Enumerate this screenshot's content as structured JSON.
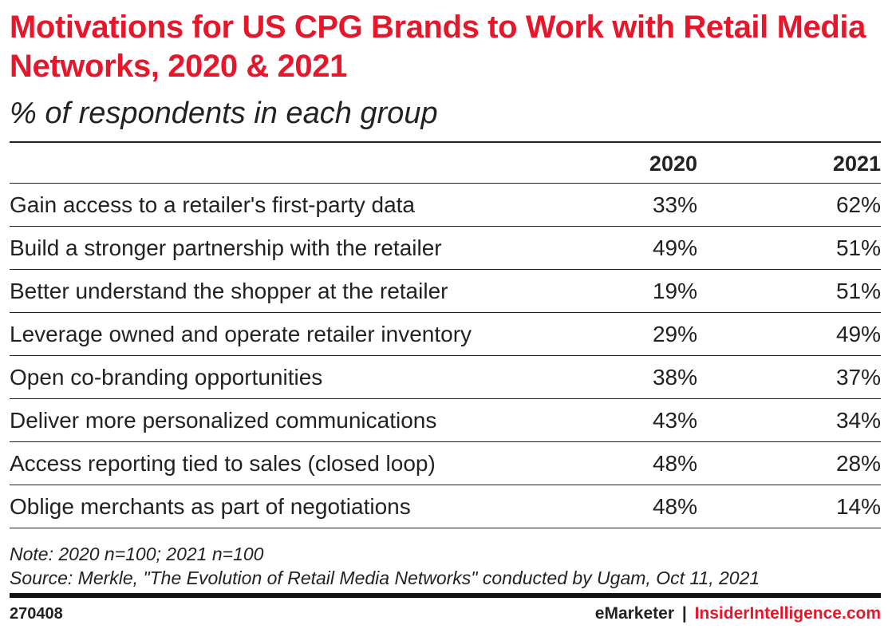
{
  "chart_data": {
    "type": "table",
    "title": "Motivations for US CPG Brands to Work with Retail Media Networks, 2020 & 2021",
    "subtitle": "% of respondents in each group",
    "columns": [
      "",
      "2020",
      "2021"
    ],
    "rows": [
      {
        "label": "Gain access to a retailer's first-party data",
        "v2020": "33%",
        "v2021": "62%"
      },
      {
        "label": "Build a stronger partnership with the retailer",
        "v2020": "49%",
        "v2021": "51%"
      },
      {
        "label": "Better understand the shopper at the retailer",
        "v2020": "19%",
        "v2021": "51%"
      },
      {
        "label": "Leverage owned and operate retailer inventory",
        "v2020": "29%",
        "v2021": "49%"
      },
      {
        "label": "Open co-branding opportunities",
        "v2020": "38%",
        "v2021": "37%"
      },
      {
        "label": "Deliver more personalized communications",
        "v2020": "43%",
        "v2021": "34%"
      },
      {
        "label": "Access reporting tied to sales (closed loop)",
        "v2020": "48%",
        "v2021": "28%"
      },
      {
        "label": "Oblige merchants as part of negotiations",
        "v2020": "48%",
        "v2021": "14%"
      }
    ],
    "series": [
      {
        "name": "2020",
        "values": [
          33,
          49,
          19,
          29,
          38,
          43,
          48,
          48
        ]
      },
      {
        "name": "2021",
        "values": [
          62,
          51,
          51,
          49,
          37,
          34,
          28,
          14
        ]
      }
    ]
  },
  "footer": {
    "note": "Note: 2020 n=100; 2021 n=100",
    "source": "Source: Merkle, \"The Evolution of Retail Media Networks\" conducted by Ugam, Oct 11, 2021",
    "chart_id": "270408",
    "brand_emarketer": "eMarketer",
    "brand_separator": "|",
    "brand_insider": "InsiderIntelligence.com"
  },
  "colors": {
    "title": "#e6172b",
    "text": "#222222",
    "rule": "#222222"
  }
}
